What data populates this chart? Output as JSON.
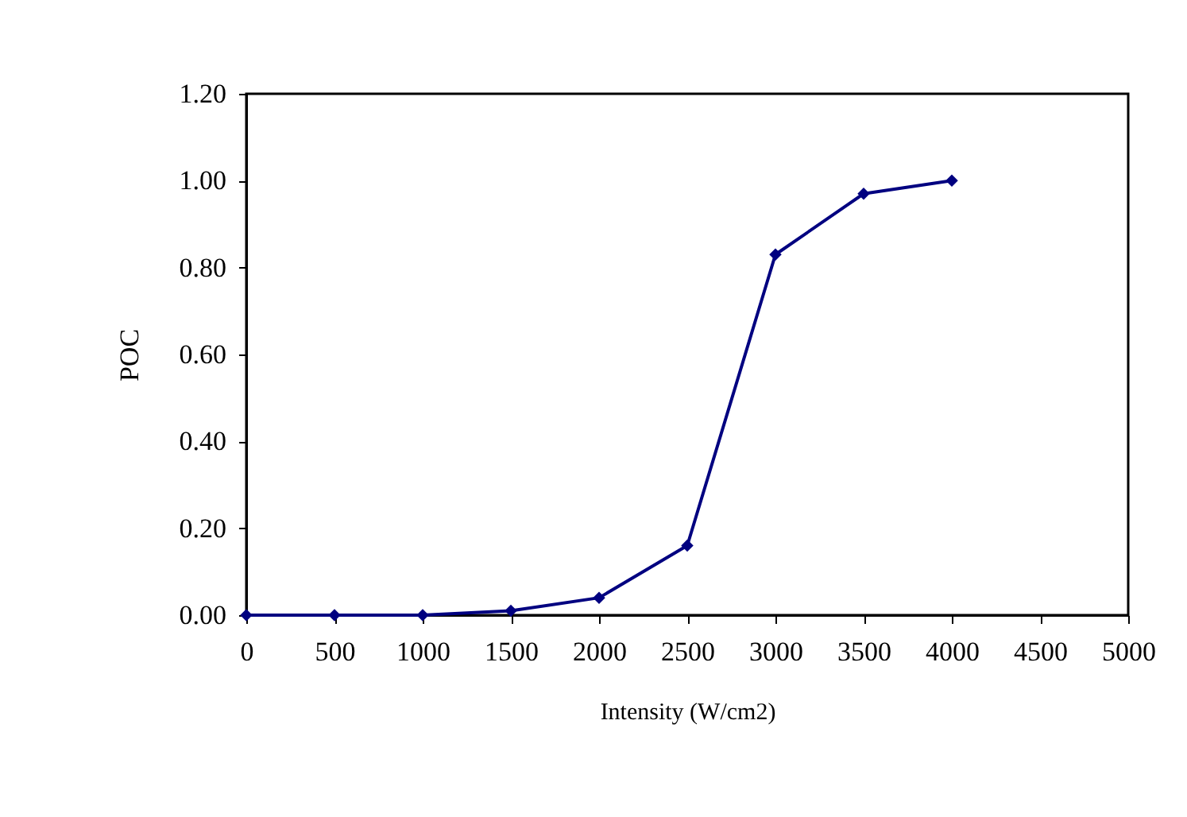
{
  "chart_data": {
    "type": "line",
    "xlabel": "Intensity (W/cm2)",
    "ylabel": "POC",
    "x": [
      0,
      500,
      1000,
      1500,
      2000,
      2500,
      3000,
      3500,
      4000
    ],
    "series": [
      {
        "color": "#000080",
        "values": [
          0,
          0,
          0,
          0.01,
          0.04,
          0.16,
          0.83,
          0.97,
          1.0
        ]
      }
    ],
    "xlim": [
      0,
      5000
    ],
    "xticks": [
      0,
      500,
      1000,
      1500,
      2000,
      2500,
      3000,
      3500,
      4000,
      4500,
      5000
    ],
    "ylim": [
      0,
      1.2
    ],
    "yticks": [
      {
        "value": 0,
        "label": "0.00"
      },
      {
        "value": 0.2,
        "label": "0.20"
      },
      {
        "value": 0.4,
        "label": "0.40"
      },
      {
        "value": 0.6,
        "label": "0.60"
      },
      {
        "value": 0.8,
        "label": "0.80"
      },
      {
        "value": 1.0,
        "label": "1.00"
      },
      {
        "value": 1.2,
        "label": "1.20"
      }
    ],
    "grid": false,
    "marker": "diamond",
    "line_style": "solid"
  }
}
